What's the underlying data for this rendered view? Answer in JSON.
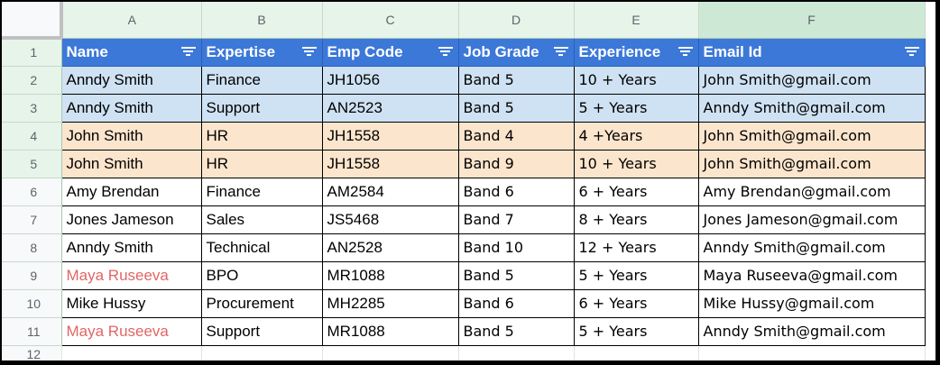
{
  "columns": [
    "A",
    "B",
    "C",
    "D",
    "E",
    "F"
  ],
  "header": [
    "Name",
    "Expertise",
    "Emp Code",
    "Job Grade",
    "Experience",
    "Email Id"
  ],
  "rows": [
    {
      "num": "1"
    },
    {
      "num": "2",
      "cells": [
        "Anndy Smith",
        "Finance",
        "JH1056",
        "Band 5",
        "10 + Years",
        "John Smith@gmail.com"
      ]
    },
    {
      "num": "3",
      "cells": [
        "Anndy Smith",
        "Support",
        "AN2523",
        "Band 5",
        "5 + Years",
        "Anndy Smith@gmail.com"
      ]
    },
    {
      "num": "4",
      "cells": [
        "John Smith",
        "HR",
        "JH1558",
        "Band 4",
        "4 +Years",
        "John Smith@gmail.com"
      ]
    },
    {
      "num": "5",
      "cells": [
        "John Smith",
        "HR",
        "JH1558",
        "Band 9",
        "10 + Years",
        "John Smith@gmail.com"
      ]
    },
    {
      "num": "6",
      "cells": [
        "Amy Brendan",
        "Finance",
        "AM2584",
        "Band 6",
        "6 + Years",
        "Amy Brendan@gmail.com"
      ]
    },
    {
      "num": "7",
      "cells": [
        "Jones Jameson",
        "Sales",
        "JS5468",
        "Band 7",
        "8 + Years",
        "Jones Jameson@gmail.com"
      ]
    },
    {
      "num": "8",
      "cells": [
        "Anndy Smith",
        "Technical",
        "AN2528",
        "Band 10",
        "12 + Years",
        "Anndy Smith@gmail.com"
      ]
    },
    {
      "num": "9",
      "cells": [
        "Maya Ruseeva",
        "BPO",
        "MR1088",
        "Band 5",
        "5 + Years",
        "Maya Ruseeva@gmail.com"
      ]
    },
    {
      "num": "10",
      "cells": [
        "Mike Hussy",
        "Procurement",
        "MH2285",
        "Band 6",
        "6 + Years",
        "Mike Hussy@gmail.com"
      ]
    },
    {
      "num": "11",
      "cells": [
        "Maya Ruseeva",
        "Support",
        "MR1088",
        "Band 5",
        "5 + Years",
        "Anndy Smith@gmail.com"
      ]
    },
    {
      "num": "12"
    }
  ],
  "colors": {
    "header_fill": "#3c78d8",
    "blue_row_fill": "#cfe2f3",
    "peach_row_fill": "#fce5cd",
    "red_text": "#e06666",
    "sheet_header_fill": "#e6f4ea"
  },
  "icons": {
    "filter": "filter-icon"
  }
}
